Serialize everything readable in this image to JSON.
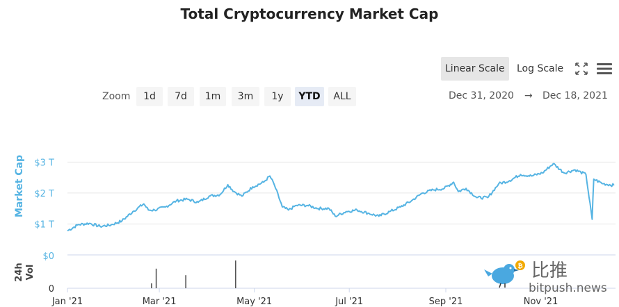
{
  "title": "Total Cryptocurrency Market Cap",
  "toolbar": {
    "linear_label": "Linear Scale",
    "log_label": "Log Scale",
    "zoom_label": "Zoom",
    "zoom_options": [
      "1d",
      "7d",
      "1m",
      "3m",
      "1y",
      "YTD",
      "ALL"
    ],
    "active_zoom": "YTD",
    "active_scale": "Linear Scale",
    "range_from": "Dec 31, 2020",
    "range_arrow": "→",
    "range_to": "Dec 18, 2021",
    "icons": [
      "fullscreen-icon",
      "menu-icon"
    ]
  },
  "watermark": {
    "brand_cn": "比推",
    "brand_url": "bitpush.news"
  },
  "colors": {
    "line": "#56b4e3",
    "axis_label": "#56b4e3",
    "volume": "#555555",
    "grid": "#e6e6e6"
  },
  "chart_data": {
    "type": "line",
    "title": "Total Cryptocurrency Market Cap",
    "ylabel": "Market Cap",
    "y_ticks": [
      {
        "value": 1,
        "label": "$1 T"
      },
      {
        "value": 2,
        "label": "$2 T"
      },
      {
        "value": 3,
        "label": "$3 T"
      }
    ],
    "ylim": [
      0,
      3.3
    ],
    "x_ticks": [
      {
        "date": "2021-01-01",
        "label": "Jan '21"
      },
      {
        "date": "2021-03-01",
        "label": "Mar '21"
      },
      {
        "date": "2021-05-01",
        "label": "May '21"
      },
      {
        "date": "2021-07-01",
        "label": "Jul '21"
      },
      {
        "date": "2021-09-01",
        "label": "Sep '21"
      },
      {
        "date": "2021-11-01",
        "label": "Nov '21"
      }
    ],
    "xlim": [
      "2021-01-01",
      "2021-12-19"
    ],
    "series": [
      {
        "x": [
          "2021-01-01",
          "2021-01-08",
          "2021-01-15",
          "2021-01-22",
          "2021-01-29",
          "2021-02-05",
          "2021-02-12",
          "2021-02-19",
          "2021-02-22",
          "2021-02-26",
          "2021-03-05",
          "2021-03-12",
          "2021-03-19",
          "2021-03-26",
          "2021-04-02",
          "2021-04-09",
          "2021-04-14",
          "2021-04-18",
          "2021-04-23",
          "2021-04-30",
          "2021-05-07",
          "2021-05-11",
          "2021-05-14",
          "2021-05-19",
          "2021-05-23",
          "2021-05-28",
          "2021-06-04",
          "2021-06-11",
          "2021-06-18",
          "2021-06-22",
          "2021-06-29",
          "2021-07-06",
          "2021-07-13",
          "2021-07-20",
          "2021-07-27",
          "2021-08-03",
          "2021-08-10",
          "2021-08-17",
          "2021-08-24",
          "2021-08-31",
          "2021-09-06",
          "2021-09-09",
          "2021-09-14",
          "2021-09-21",
          "2021-09-28",
          "2021-10-05",
          "2021-10-12",
          "2021-10-19",
          "2021-10-26",
          "2021-11-02",
          "2021-11-09",
          "2021-11-16",
          "2021-11-23",
          "2021-11-30",
          "2021-12-04",
          "2021-12-05",
          "2021-12-11",
          "2021-12-18"
        ],
        "values": [
          0.78,
          0.98,
          1.02,
          0.92,
          0.97,
          1.1,
          1.4,
          1.65,
          1.45,
          1.45,
          1.55,
          1.75,
          1.8,
          1.7,
          1.9,
          1.95,
          2.27,
          2.05,
          1.9,
          2.2,
          2.35,
          2.55,
          2.25,
          1.55,
          1.45,
          1.6,
          1.6,
          1.5,
          1.5,
          1.25,
          1.4,
          1.45,
          1.35,
          1.25,
          1.4,
          1.55,
          1.75,
          2.0,
          2.1,
          2.15,
          2.35,
          2.05,
          2.15,
          1.85,
          1.85,
          2.3,
          2.4,
          2.6,
          2.55,
          2.65,
          2.95,
          2.65,
          2.75,
          2.6,
          1.15,
          2.45,
          2.3,
          2.25
        ]
      }
    ],
    "volume": {
      "label": "24h Vol",
      "y_ticks": [
        {
          "value": 0,
          "label": "0"
        },
        {
          "value": 1,
          "label": "$0"
        }
      ],
      "bars": [
        {
          "date": "2021-02-24",
          "value": 0.15
        },
        {
          "date": "2021-02-27",
          "value": 0.6
        },
        {
          "date": "2021-03-18",
          "value": 0.4
        },
        {
          "date": "2021-04-19",
          "value": 0.85
        }
      ]
    }
  }
}
